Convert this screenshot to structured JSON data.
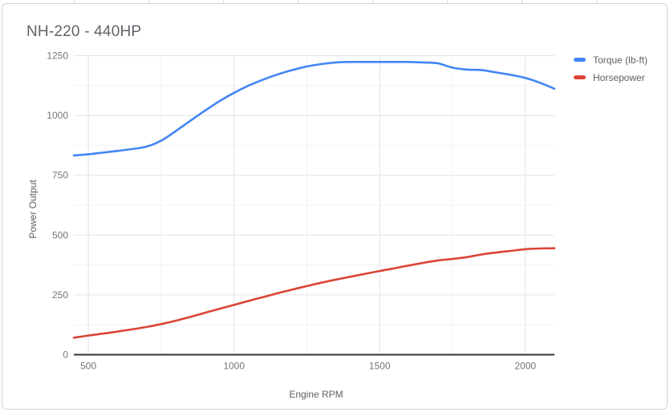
{
  "chart": {
    "title": "NH-220 - 440HP",
    "y_axis_title": "Power Output",
    "x_axis_title": "Engine RPM",
    "legend": [
      {
        "label": "Torque (lb-ft)",
        "color": "#4285f4"
      },
      {
        "label": "Horsepower",
        "color": "#db4437"
      }
    ]
  },
  "colors": {
    "torque": "#4285f4",
    "horsepower": "#db4437",
    "major_gridline": "#e3e3e3",
    "minor_gridline": "#f3f3f3",
    "axis_line": "#333333",
    "tick_label": "#757575",
    "title_text": "#5f6368",
    "axis_title_text": "#616161",
    "card_border": "#d5d5d5"
  },
  "chart_data": {
    "type": "line",
    "title": "NH-220 - 440HP",
    "xlabel": "Engine RPM",
    "ylabel": "Power Output",
    "xlim": [
      450,
      2100
    ],
    "ylim": [
      0,
      1250
    ],
    "x_ticks": [
      500,
      1000,
      1500,
      2000
    ],
    "y_ticks": [
      0,
      250,
      500,
      750,
      1000,
      1250
    ],
    "minor_gridlines": true,
    "grid": true,
    "legend_position": "right",
    "x": [
      450,
      500,
      550,
      600,
      650,
      700,
      750,
      800,
      850,
      900,
      950,
      1000,
      1050,
      1100,
      1150,
      1200,
      1250,
      1300,
      1350,
      1400,
      1450,
      1500,
      1550,
      1600,
      1650,
      1700,
      1750,
      1800,
      1850,
      1900,
      1950,
      2000,
      2050,
      2100
    ],
    "series": [
      {
        "name": "Torque (lb-ft)",
        "color": "#4285f4",
        "values": [
          833,
          838,
          845,
          852,
          860,
          870,
          895,
          935,
          978,
          1020,
          1060,
          1095,
          1125,
          1150,
          1172,
          1190,
          1205,
          1215,
          1222,
          1224,
          1224,
          1224,
          1224,
          1224,
          1222,
          1218,
          1200,
          1192,
          1190,
          1180,
          1170,
          1157,
          1137,
          1112
        ]
      },
      {
        "name": "Horsepower",
        "color": "#db4437",
        "values": [
          71,
          80,
          88,
          97,
          106,
          116,
          128,
          142,
          158,
          175,
          192,
          208,
          225,
          241,
          257,
          272,
          287,
          301,
          314,
          326,
          338,
          350,
          361,
          373,
          384,
          394,
          400,
          408,
          419,
          427,
          434,
          441,
          444,
          445
        ]
      }
    ]
  }
}
